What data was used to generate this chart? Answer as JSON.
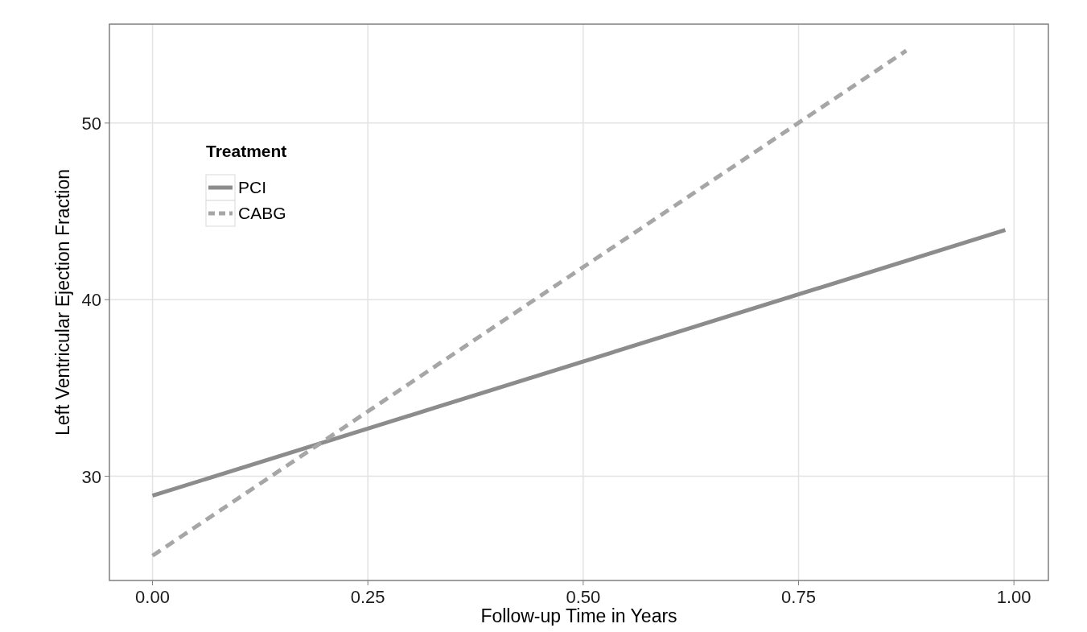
{
  "chart_data": {
    "type": "line",
    "xlabel": "Follow-up Time in Years",
    "ylabel": "Left Ventricular Ejection Fraction",
    "legend_title": "Treatment",
    "series": [
      {
        "name": "PCI",
        "color": "#8c8c8c",
        "line_style": "solid",
        "x": [
          0,
          0.99
        ],
        "values": [
          28.9,
          43.95
        ]
      },
      {
        "name": "CABG",
        "color": "#a6a6a6",
        "line_style": "dashed",
        "x": [
          0,
          0.875
        ],
        "values": [
          25.5,
          54.1
        ]
      }
    ],
    "xlim": [
      -0.05,
      1.04
    ],
    "xticks": [
      {
        "value": 0,
        "label": "0.00"
      },
      {
        "value": 0.25,
        "label": "0.25"
      },
      {
        "value": 0.5,
        "label": "0.50"
      },
      {
        "value": 0.75,
        "label": "0.75"
      },
      {
        "value": 1,
        "label": "1.00"
      }
    ],
    "ylim": [
      24.1,
      55.6
    ],
    "yticks": [
      30,
      40,
      50
    ],
    "grid": true,
    "legend": "top left",
    "marker": "none"
  }
}
